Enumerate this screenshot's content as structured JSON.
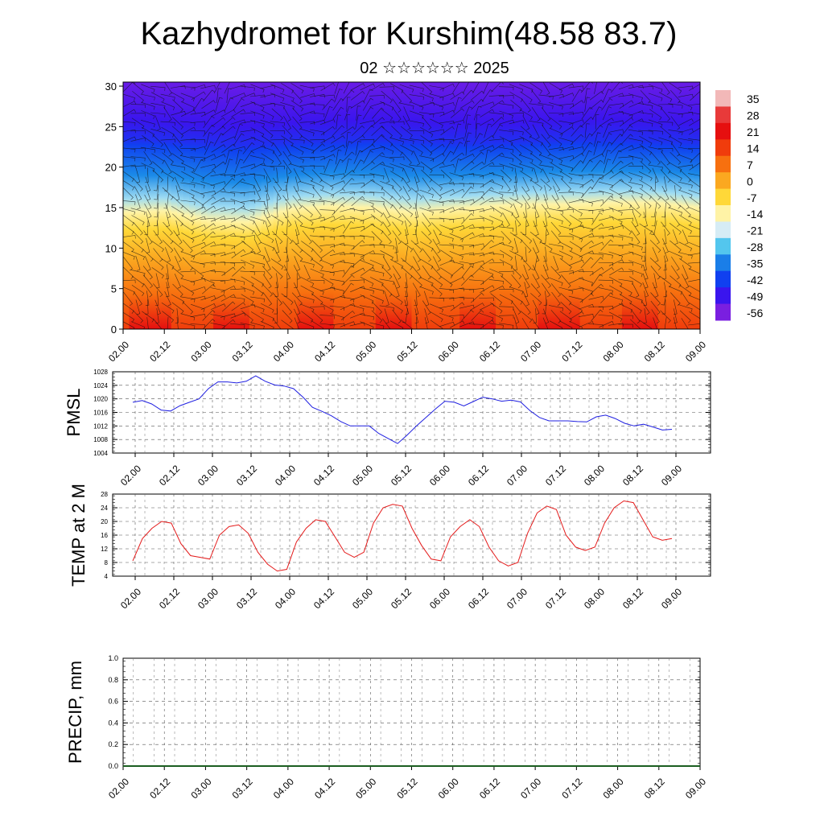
{
  "title": "Kazhydromet for Kurshim(48.58 83.7)",
  "subtitle": "02 ☆☆☆☆☆☆ 2025",
  "x_tick_labels": [
    "02.00",
    "02.12",
    "03.00",
    "03.12",
    "04.00",
    "04.12",
    "05.00",
    "05.12",
    "06.00",
    "06.12",
    "07.00",
    "07.12",
    "08.00",
    "08.12",
    "09.00"
  ],
  "chart_data": [
    {
      "type": "heatmap",
      "name": "cross-section",
      "x_ticks": [
        "02.00",
        "02.12",
        "03.00",
        "03.12",
        "04.00",
        "04.12",
        "05.00",
        "05.12",
        "06.00",
        "06.12",
        "07.00",
        "07.12",
        "08.00",
        "08.12",
        "09.00"
      ],
      "y_ticks": [
        0,
        5,
        10,
        15,
        20,
        25,
        30
      ],
      "ylim": [
        0,
        30.5
      ],
      "colorbar": {
        "labels": [
          "35",
          "28",
          "21",
          "14",
          "7",
          "0",
          "-7",
          "-14",
          "-21",
          "-28",
          "-35",
          "-42",
          "-49",
          "-56"
        ],
        "colors": [
          "#f2b8b8",
          "#e83a3a",
          "#e60f0f",
          "#f03c0c",
          "#f7700f",
          "#fba820",
          "#ffd838",
          "#fff3a6",
          "#d6ecf5",
          "#53c6ee",
          "#1a7ee8",
          "#1040f0",
          "#3a15ee",
          "#7a1fe0"
        ]
      },
      "freezing_level_km": [
        14.4,
        14.6,
        13.4,
        13.2,
        14.8,
        15.2,
        15.0,
        14.4,
        14.8,
        15.2,
        15.4,
        15.4,
        15.6,
        15.6,
        15.0
      ],
      "tropopause_km": [
        22.8,
        22.6,
        22.2,
        22.0,
        22.4,
        22.6,
        22.8,
        22.6,
        22.4,
        22.4,
        22.6,
        22.8,
        22.8,
        22.6,
        22.4
      ]
    },
    {
      "type": "line",
      "name": "pmsl",
      "ylabel": "PMSL",
      "ylim": [
        1004,
        1028
      ],
      "y_ticks": [
        1004,
        1008,
        1012,
        1016,
        1020,
        1024,
        1028
      ],
      "x_ticks": [
        "02.00",
        "02.12",
        "03.00",
        "03.12",
        "04.00",
        "04.12",
        "05.00",
        "05.12",
        "06.00",
        "06.12",
        "07.00",
        "07.12",
        "08.00",
        "08.12",
        "09.00"
      ],
      "color": "#1f1fe0",
      "values": [
        1019.0,
        1019.5,
        1018.5,
        1016.7,
        1016.4,
        1018.0,
        1019.0,
        1020.0,
        1023.0,
        1025.0,
        1025.0,
        1024.7,
        1025.2,
        1026.8,
        1025.2,
        1024.1,
        1023.8,
        1023.0,
        1020.5,
        1017.5,
        1016.3,
        1015.0,
        1013.3,
        1012.0,
        1012.0,
        1012.0,
        1009.8,
        1008.3,
        1006.8,
        1009.3,
        1012.0,
        1014.5,
        1017.0,
        1019.3,
        1019.0,
        1017.9,
        1019.2,
        1020.5,
        1020.0,
        1019.3,
        1019.6,
        1019.1,
        1016.5,
        1014.5,
        1013.5,
        1013.5,
        1013.5,
        1013.3,
        1013.2,
        1014.7,
        1015.2,
        1014.2,
        1012.8,
        1012.0,
        1012.5,
        1011.7,
        1010.8,
        1011.0
      ]
    },
    {
      "type": "line",
      "name": "temp-2m",
      "ylabel": "TEMP at 2 M",
      "ylim": [
        4,
        28
      ],
      "y_ticks": [
        4,
        8,
        12,
        16,
        20,
        24,
        28
      ],
      "x_ticks": [
        "02.00",
        "02.12",
        "03.00",
        "03.12",
        "04.00",
        "04.12",
        "05.00",
        "05.12",
        "06.00",
        "06.12",
        "07.00",
        "07.12",
        "08.00",
        "08.12",
        "09.00"
      ],
      "color": "#e41a1a",
      "values": [
        8.5,
        15.0,
        18.0,
        20.0,
        19.5,
        13.5,
        10.0,
        9.5,
        9.0,
        16.0,
        18.5,
        19.0,
        16.5,
        11.0,
        7.5,
        5.5,
        6.0,
        14.0,
        18.0,
        20.5,
        20.0,
        15.5,
        11.0,
        9.5,
        11.0,
        19.5,
        24.0,
        25.0,
        24.5,
        18.0,
        13.0,
        9.0,
        8.5,
        15.5,
        18.5,
        20.5,
        18.5,
        12.5,
        8.5,
        7.0,
        8.0,
        16.5,
        22.5,
        24.5,
        23.5,
        16.0,
        12.5,
        11.5,
        12.5,
        19.5,
        24.0,
        26.0,
        25.5,
        20.5,
        15.5,
        14.5,
        15.0
      ]
    },
    {
      "type": "bar",
      "name": "precip",
      "ylabel": "PRECIP, mm",
      "ylim": [
        0,
        1.0
      ],
      "y_ticks": [
        "0.0",
        "0.2",
        "0.4",
        "0.6",
        "0.8",
        "1.0"
      ],
      "x_ticks": [
        "02.00",
        "02.12",
        "03.00",
        "03.12",
        "04.00",
        "04.12",
        "05.00",
        "05.12",
        "06.00",
        "06.12",
        "07.00",
        "07.12",
        "08.00",
        "08.12",
        "09.00"
      ],
      "values": []
    }
  ]
}
